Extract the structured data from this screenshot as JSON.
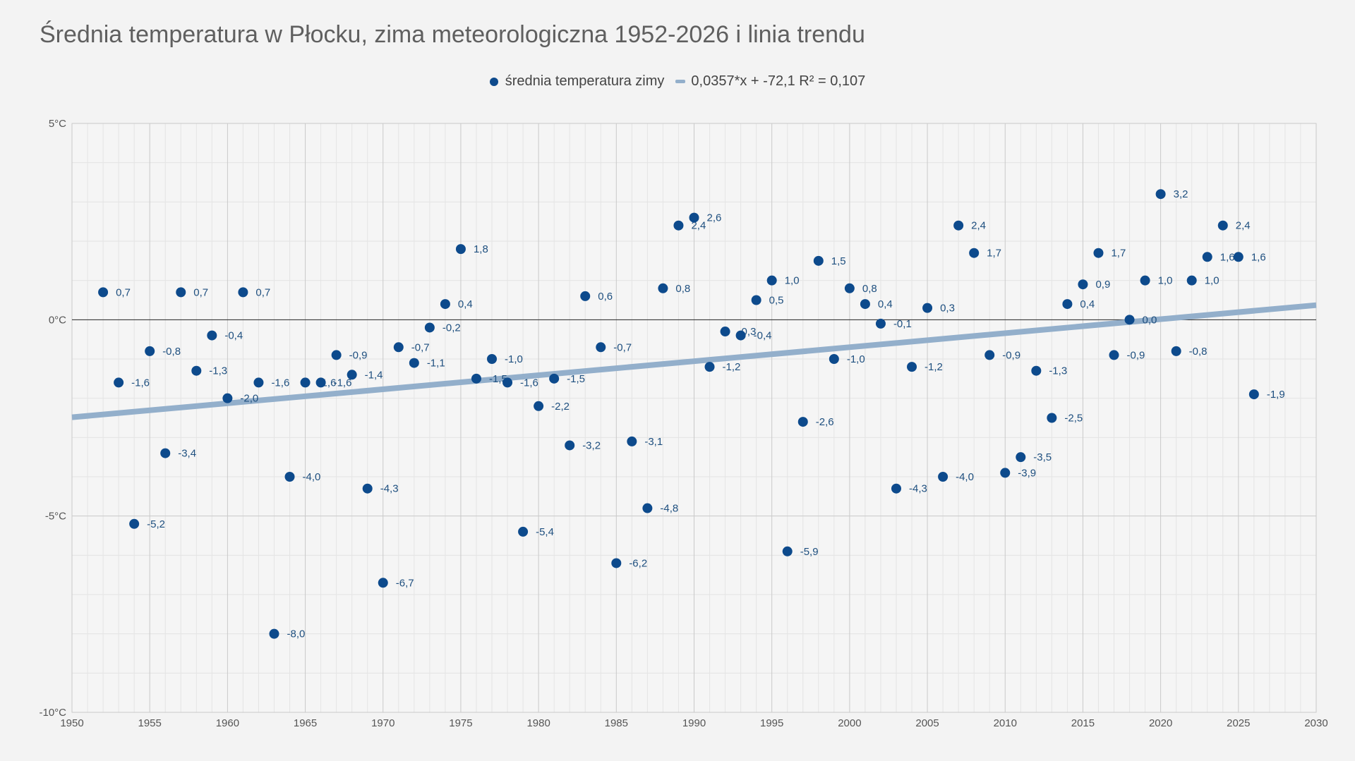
{
  "chart_data": {
    "type": "scatter",
    "title": "Średnia temperatura w Płocku, zima meteorologiczna 1952-2026 i linia trendu",
    "xlabel": "",
    "ylabel": "",
    "xlim": [
      1950,
      2030
    ],
    "ylim": [
      -10,
      5
    ],
    "x_ticks": [
      1950,
      1955,
      1960,
      1965,
      1970,
      1975,
      1980,
      1985,
      1990,
      1995,
      2000,
      2005,
      2010,
      2015,
      2020,
      2025,
      2030
    ],
    "y_ticks": [
      5,
      0,
      -5,
      -10
    ],
    "y_tick_labels": [
      "5°C",
      "0°C",
      "-5°C",
      "-10°C"
    ],
    "legend_position": "top-center",
    "colors": {
      "points": "#0d4a8c",
      "trend": "#93afcb",
      "label": "#1e4f7f",
      "zero_line": "#222222"
    },
    "series": [
      {
        "name": "średnia temperatura zimy",
        "x": [
          1952,
          1953,
          1954,
          1955,
          1956,
          1957,
          1958,
          1959,
          1960,
          1961,
          1962,
          1963,
          1964,
          1965,
          1966,
          1967,
          1968,
          1969,
          1970,
          1971,
          1972,
          1973,
          1974,
          1975,
          1976,
          1977,
          1978,
          1979,
          1980,
          1981,
          1982,
          1983,
          1984,
          1985,
          1986,
          1987,
          1988,
          1989,
          1990,
          1991,
          1992,
          1993,
          1994,
          1995,
          1996,
          1997,
          1998,
          1999,
          2000,
          2001,
          2002,
          2003,
          2004,
          2005,
          2006,
          2007,
          2008,
          2009,
          2010,
          2011,
          2012,
          2013,
          2014,
          2015,
          2016,
          2017,
          2018,
          2019,
          2020,
          2021,
          2022,
          2023,
          2024,
          2025,
          2026
        ],
        "y": [
          0.7,
          -1.6,
          -5.2,
          -0.8,
          -3.4,
          0.7,
          -1.3,
          -0.4,
          -2.0,
          0.7,
          -1.6,
          -8.0,
          -4.0,
          -1.6,
          -1.6,
          -0.9,
          -1.4,
          -4.3,
          -6.7,
          -0.7,
          -1.1,
          -0.2,
          0.4,
          1.8,
          -1.5,
          -1.0,
          -1.6,
          -5.4,
          -2.2,
          -1.5,
          -3.2,
          0.6,
          -0.7,
          -6.2,
          -3.1,
          -4.8,
          0.8,
          2.4,
          2.6,
          -1.2,
          -0.3,
          -0.4,
          0.5,
          1.0,
          -5.9,
          -2.6,
          1.5,
          -1.0,
          0.8,
          0.4,
          -0.1,
          -4.3,
          -1.2,
          0.3,
          -4.0,
          2.4,
          1.7,
          -0.9,
          -3.9,
          -3.5,
          -1.3,
          -2.5,
          0.4,
          0.9,
          1.7,
          -0.9,
          0.0,
          1.0,
          3.2,
          -0.8,
          1.0,
          1.6,
          2.4,
          1.6,
          -1.9
        ],
        "labels": [
          "0,7",
          "-1,6",
          "-5,2",
          "-0,8",
          "-3,4",
          "0,7",
          "-1,3",
          "-0,4",
          "-2,0",
          "0,7",
          "-1,6",
          "-8,0",
          "-4,0",
          "-1,6",
          "-1,6",
          "-0,9",
          "-1,4",
          "-4,3",
          "-6,7",
          "-0,7",
          "-1,1",
          "-0,2",
          "0,4",
          "1,8",
          "-1,5",
          "-1,0",
          "-1,6",
          "-5,4",
          "-2,2",
          "-1,5",
          "-3,2",
          "0,6",
          "-0,7",
          "-6,2",
          "-3,1",
          "-4,8",
          "0,8",
          "2,4",
          "2,6",
          "-1,2",
          "-0,3",
          "-0,4",
          "0,5",
          "1,0",
          "-5,9",
          "-2,6",
          "1,5",
          "-1,0",
          "0,8",
          "0,4",
          "-0,1",
          "-4,3",
          "-1,2",
          "0,3",
          "-4,0",
          "2,4",
          "1,7",
          "-0,9",
          "-3,9",
          "-3,5",
          "-1,3",
          "-2,5",
          "0,4",
          "0,9",
          "1,7",
          "-0,9",
          "0,0",
          "1,0",
          "3,2",
          "-0,8",
          "1,0",
          "1,6",
          "2,4",
          "1,6",
          "-1,9"
        ]
      },
      {
        "name": "0,0357*x + -72,1 R² = 0,107",
        "type": "trendline",
        "slope": 0.0357,
        "intercept": -72.1,
        "r_squared": 0.107
      }
    ]
  }
}
